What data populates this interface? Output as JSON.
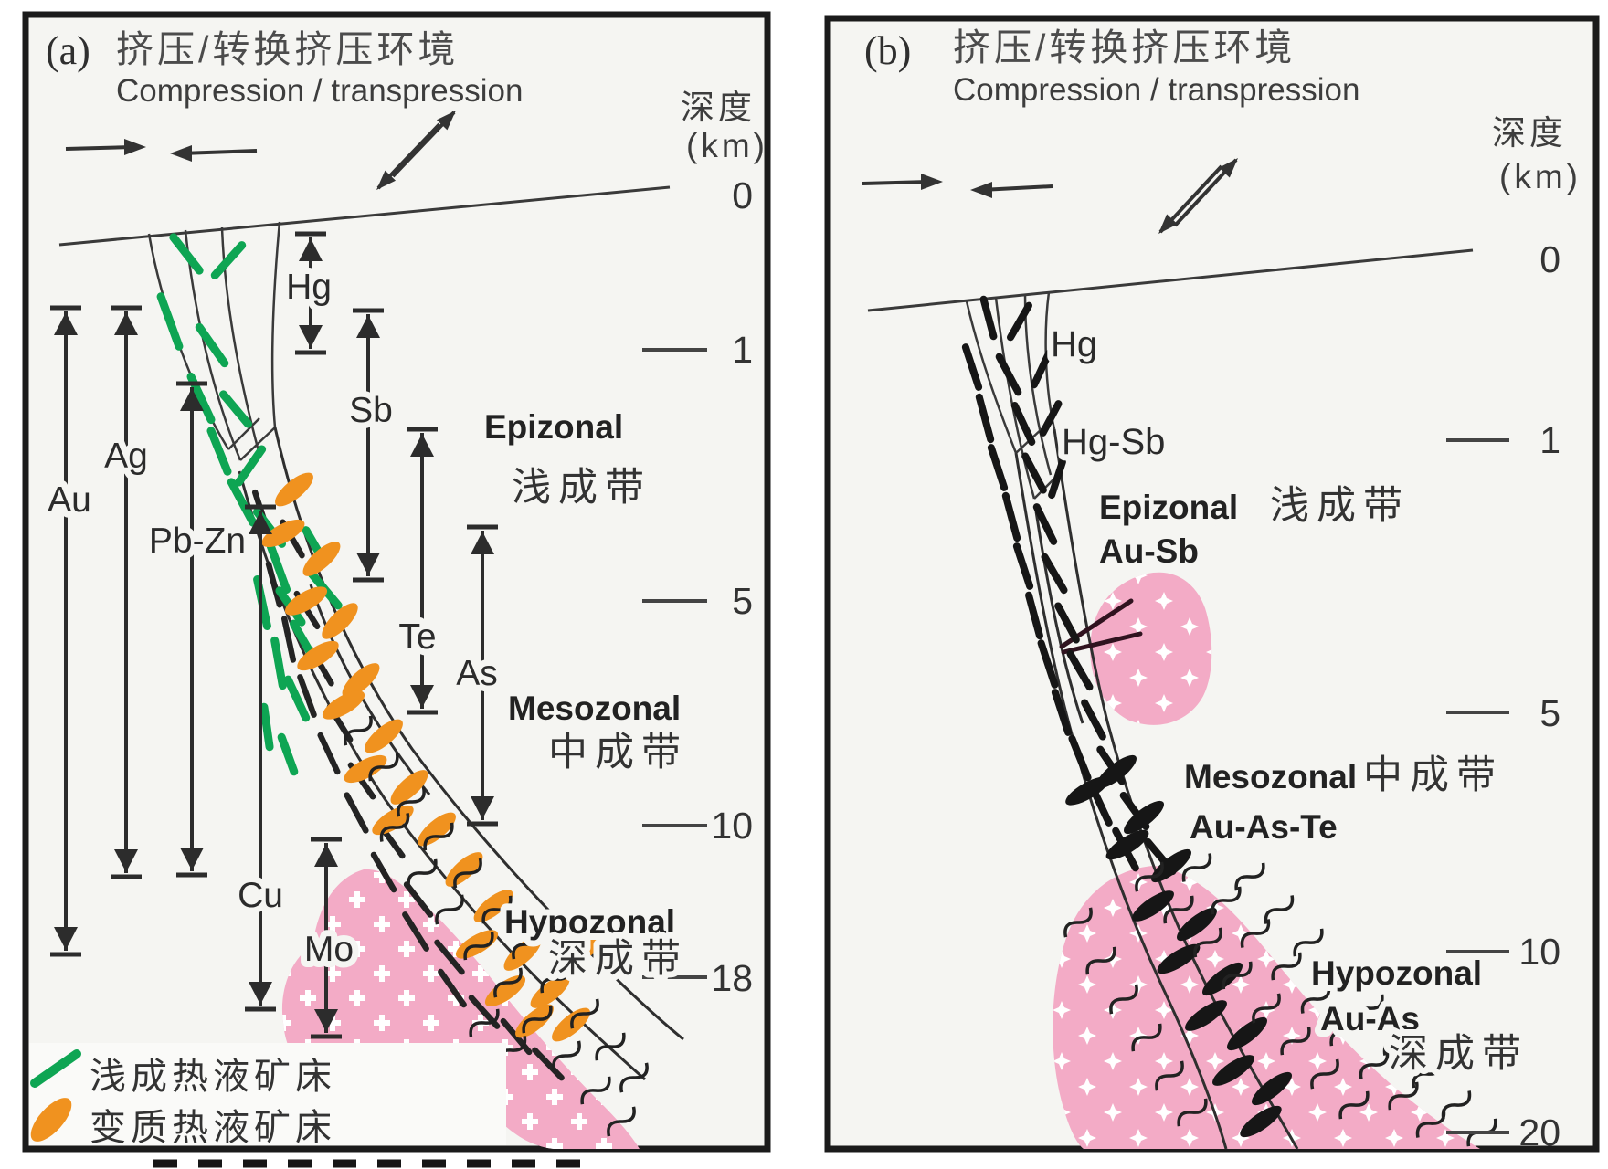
{
  "figure": {
    "panel_a": {
      "tag": "(a)",
      "title_zh": "挤压/转换挤压环境",
      "title_en": "Compression / transpression",
      "depth_label_zh": "深度",
      "depth_label_unit": "(km)",
      "depth_ticks": [
        "0",
        "1",
        "5",
        "10",
        "18"
      ],
      "element_ranges": [
        {
          "label": "Au"
        },
        {
          "label": "Ag"
        },
        {
          "label": "Pb-Zn"
        },
        {
          "label": "Hg"
        },
        {
          "label": "Sb"
        },
        {
          "label": "Te"
        },
        {
          "label": "As"
        },
        {
          "label": "Cu"
        },
        {
          "label": "Mo"
        }
      ],
      "zones": [
        {
          "en": "Epizonal",
          "zh": "浅成带"
        },
        {
          "en": "Mesozonal",
          "zh": "中成带"
        },
        {
          "en": "Hypozonal",
          "zh": "深成带"
        }
      ],
      "legend": [
        {
          "label": "浅成热液矿床",
          "swatch": "green-dash"
        },
        {
          "label": "变质热液矿床",
          "swatch": "orange-lens"
        }
      ]
    },
    "panel_b": {
      "tag": "(b)",
      "title_zh": "挤压/转换挤压环境",
      "title_en": "Compression / transpression",
      "depth_label_zh": "深度",
      "depth_label_unit": "(km)",
      "depth_ticks": [
        "0",
        "1",
        "5",
        "10",
        "20"
      ],
      "vein_labels": [
        {
          "label": "Hg"
        },
        {
          "label": "Hg-Sb"
        }
      ],
      "zones": [
        {
          "en": "Epizonal",
          "zh": "浅成带",
          "metals": "Au-Sb"
        },
        {
          "en": "Mesozonal",
          "zh": "中成带",
          "metals": "Au-As-Te"
        },
        {
          "en": "Hypozonal",
          "zh": "深成带",
          "metals": "Au-As"
        }
      ]
    },
    "colors": {
      "epithermal_green": "#0ea553",
      "metamorphic_orange": "#f0921f",
      "granite_pink": "#f3abc6",
      "lens_black": "#161616",
      "ink": "#2e2e2e"
    }
  }
}
